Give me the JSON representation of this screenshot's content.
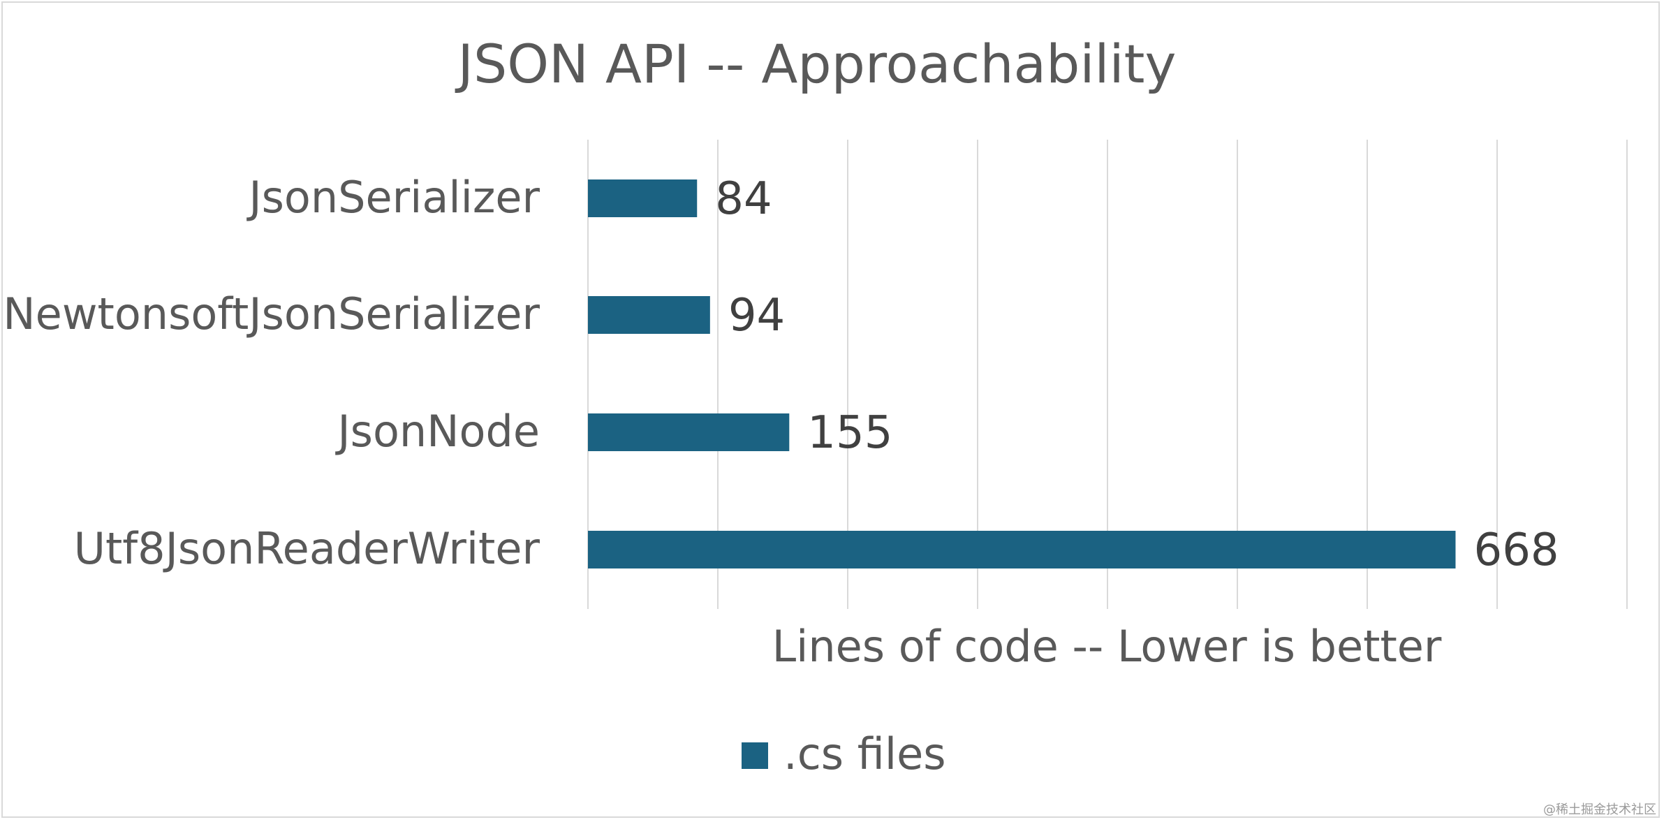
{
  "chart_data": {
    "type": "bar",
    "orientation": "horizontal",
    "title": "JSON API -- Approachability",
    "categories": [
      "JsonSerializer",
      "NewtonsoftJsonSerializer",
      "JsonNode",
      "Utf8JsonReaderWriter"
    ],
    "series": [
      {
        "name": ".cs files",
        "values": [
          84,
          94,
          155,
          668
        ],
        "color": "#1b6282"
      }
    ],
    "xlabel": "Lines of code -- Lower is better",
    "ylabel": "",
    "xlim": [
      0,
      800
    ],
    "grid": true,
    "legend": "bottom",
    "data_labels": true
  },
  "watermark": "@稀土掘金技术社区",
  "colors": {
    "bar": "#1b6282",
    "grid": "#d9d9d9",
    "text": "#595959",
    "label": "#404040",
    "border": "#d9d9d9"
  }
}
